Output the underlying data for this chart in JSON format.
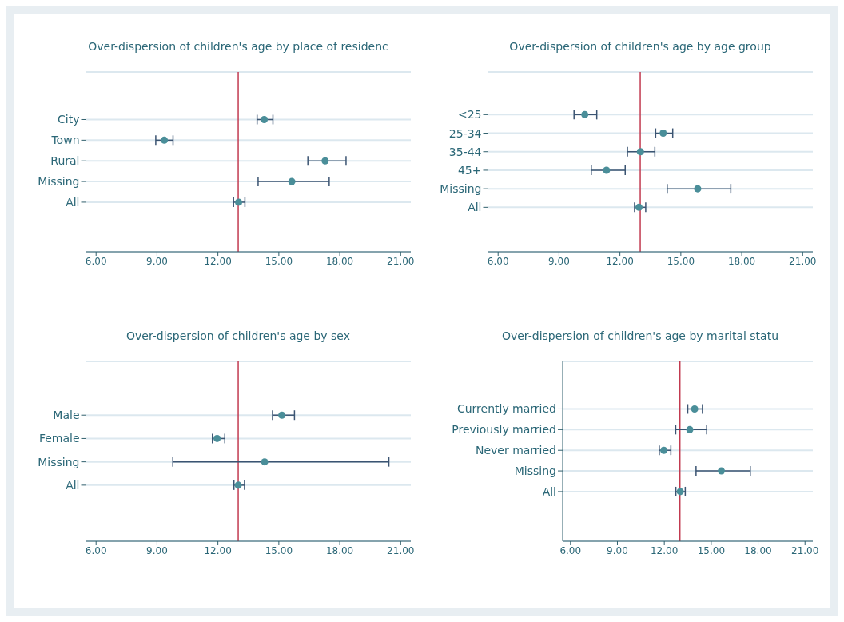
{
  "chart_data": [
    {
      "type": "scatter",
      "orientation": "horizontal",
      "title": "Over-dispersion of children's age by place of residenc",
      "categories": [
        "City",
        "Town",
        "Rural",
        "Missing",
        "All"
      ],
      "values": [
        14.28,
        9.36,
        17.28,
        15.64,
        13.02
      ],
      "errors": [
        [
          13.93,
          14.71
        ],
        [
          8.94,
          9.79
        ],
        [
          16.43,
          18.31
        ],
        [
          13.98,
          17.48
        ],
        [
          12.77,
          13.33
        ]
      ],
      "color": "#4a8e99",
      "marker": "circle",
      "grid": "y",
      "xlim": [
        5.5,
        21.5
      ],
      "xticks": [
        {
          "value": 6,
          "label": "6.00"
        },
        {
          "value": 9,
          "label": "9.00"
        },
        {
          "value": 12,
          "label": "12.00"
        },
        {
          "value": 15,
          "label": "15.00"
        },
        {
          "value": 18,
          "label": "18.00"
        },
        {
          "value": 21,
          "label": "21.00"
        }
      ],
      "ref_lines": [
        {
          "axis": "x",
          "value": 13,
          "color": "#c23a50"
        }
      ]
    },
    {
      "type": "scatter",
      "orientation": "horizontal",
      "title": "Over-dispersion of children's age by age group",
      "categories": [
        "<25",
        "25-34",
        "35-44",
        "45+",
        "Missing",
        "All"
      ],
      "values": [
        10.27,
        14.13,
        13.01,
        11.34,
        15.83,
        12.94
      ],
      "errors": [
        [
          9.74,
          10.86
        ],
        [
          13.76,
          14.6
        ],
        [
          12.37,
          13.72
        ],
        [
          10.59,
          12.26
        ],
        [
          14.33,
          17.46
        ],
        [
          12.72,
          13.27
        ]
      ],
      "color": "#4a8e99",
      "marker": "circle",
      "grid": "y",
      "xlim": [
        5.5,
        21.5
      ],
      "xticks": [
        {
          "value": 6,
          "label": "6.00"
        },
        {
          "value": 9,
          "label": "9.00"
        },
        {
          "value": 12,
          "label": "12.00"
        },
        {
          "value": 15,
          "label": "15.00"
        },
        {
          "value": 18,
          "label": "18.00"
        },
        {
          "value": 21,
          "label": "21.00"
        }
      ],
      "ref_lines": [
        {
          "axis": "x",
          "value": 13,
          "color": "#c23a50"
        }
      ]
    },
    {
      "type": "scatter",
      "orientation": "horizontal",
      "title": "Over-dispersion of children's age by sex",
      "categories": [
        "Male",
        "Female",
        "Missing",
        "All"
      ],
      "values": [
        15.15,
        11.96,
        14.3,
        13.0
      ],
      "errors": [
        [
          14.69,
          15.77
        ],
        [
          11.73,
          12.34
        ],
        [
          9.78,
          20.42
        ],
        [
          12.79,
          13.31
        ]
      ],
      "color": "#4a8e99",
      "marker": "circle",
      "grid": "y",
      "xlim": [
        5.5,
        21.5
      ],
      "xticks": [
        {
          "value": 6,
          "label": "6.00"
        },
        {
          "value": 9,
          "label": "9.00"
        },
        {
          "value": 12,
          "label": "12.00"
        },
        {
          "value": 15,
          "label": "15.00"
        },
        {
          "value": 18,
          "label": "18.00"
        },
        {
          "value": 21,
          "label": "21.00"
        }
      ],
      "ref_lines": [
        {
          "axis": "x",
          "value": 13,
          "color": "#c23a50"
        }
      ]
    },
    {
      "type": "scatter",
      "orientation": "horizontal",
      "title": "Over-dispersion of children's age by marital statu",
      "categories": [
        "Currently married",
        "Previously married",
        "Never married",
        "Missing",
        "All"
      ],
      "values": [
        13.94,
        13.63,
        11.97,
        15.65,
        13.02
      ],
      "errors": [
        [
          13.5,
          14.44
        ],
        [
          12.73,
          14.71
        ],
        [
          11.68,
          12.42
        ],
        [
          14.03,
          17.5
        ],
        [
          12.74,
          13.34
        ]
      ],
      "color": "#4a8e99",
      "marker": "circle",
      "grid": "y",
      "xlim": [
        5.5,
        21.5
      ],
      "xticks": [
        {
          "value": 6,
          "label": "6.00"
        },
        {
          "value": 9,
          "label": "9.00"
        },
        {
          "value": 12,
          "label": "12.00"
        },
        {
          "value": 15,
          "label": "15.00"
        },
        {
          "value": 18,
          "label": "18.00"
        },
        {
          "value": 21,
          "label": "21.00"
        }
      ],
      "ref_lines": [
        {
          "axis": "x",
          "value": 13,
          "color": "#c23a50"
        }
      ]
    }
  ]
}
